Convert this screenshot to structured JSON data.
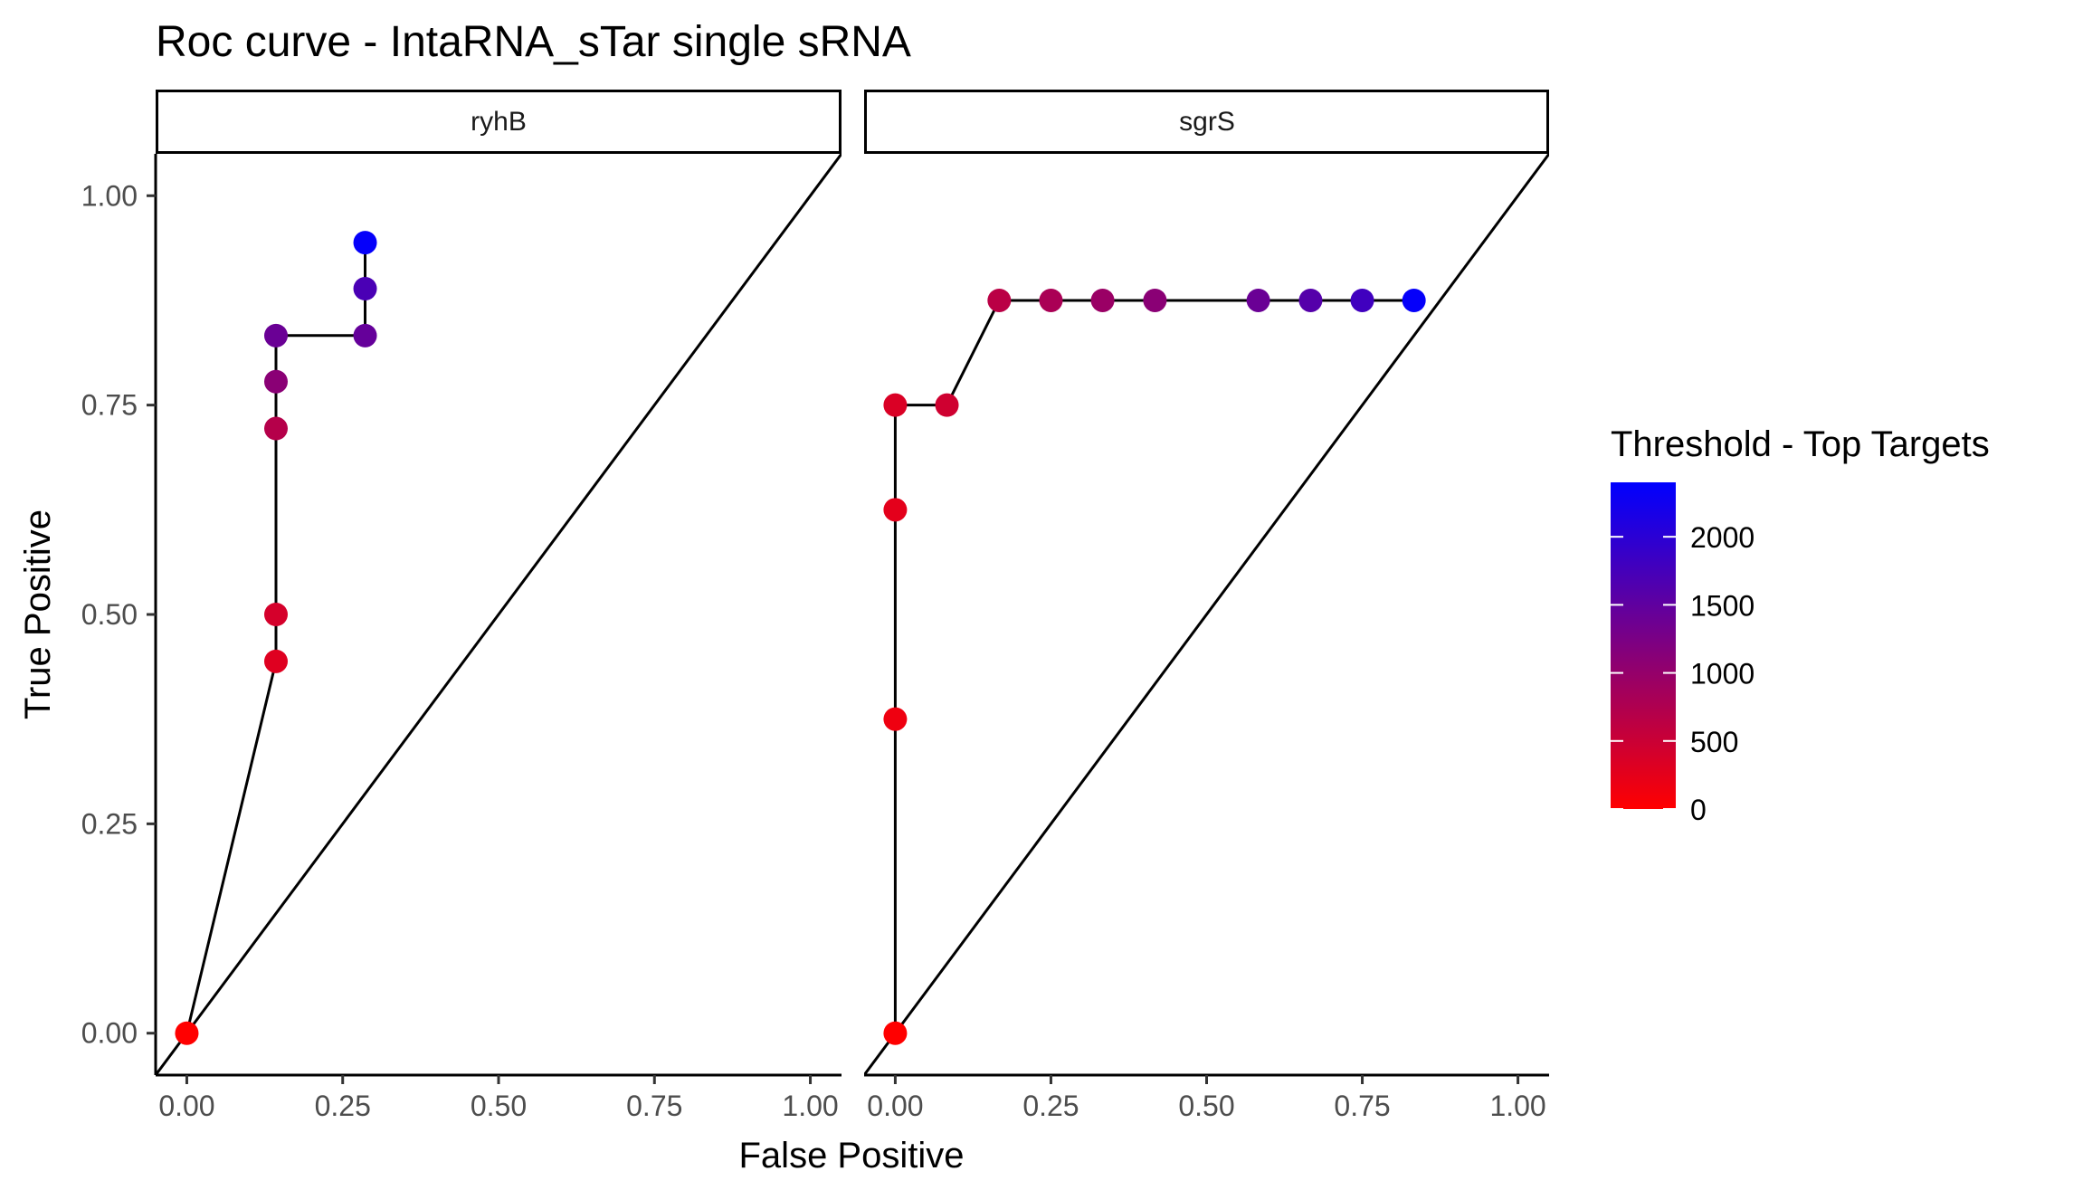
{
  "chart_data": {
    "type": "scatter",
    "title": "Roc curve - IntaRNA_sTar single sRNA",
    "xlabel": "False Positive",
    "ylabel": "True Positive",
    "xlim": [
      -0.05,
      1.05
    ],
    "ylim": [
      -0.05,
      1.05
    ],
    "x_ticks": [
      0,
      0.25,
      0.5,
      0.75,
      1
    ],
    "x_tick_labels": [
      "0.00",
      "0.25",
      "0.50",
      "0.75",
      "1.00"
    ],
    "y_ticks": [
      0,
      0.25,
      0.5,
      0.75,
      1
    ],
    "y_tick_labels": [
      "0.00",
      "0.25",
      "0.50",
      "0.75",
      "1.00"
    ],
    "grid": false,
    "legend": {
      "title": "Threshold - Top Targets",
      "position": "right",
      "low_color": "#FF0000",
      "high_color": "#0000FF",
      "range": [
        0,
        2400
      ],
      "ticks": [
        0,
        500,
        1000,
        1500,
        2000
      ],
      "tick_labels": [
        "0",
        "500",
        "1000",
        "1500",
        "2000"
      ]
    },
    "panels": [
      {
        "label": "ryhB",
        "diagonal": [
          [
            -0.05,
            -0.05
          ],
          [
            1.05,
            1.05
          ]
        ],
        "points": [
          {
            "x": 0.0,
            "y": 0.0,
            "threshold": 0
          },
          {
            "x": 0.143,
            "y": 0.444,
            "threshold": 300
          },
          {
            "x": 0.143,
            "y": 0.5,
            "threshold": 400
          },
          {
            "x": 0.143,
            "y": 0.722,
            "threshold": 700
          },
          {
            "x": 0.143,
            "y": 0.778,
            "threshold": 1100
          },
          {
            "x": 0.143,
            "y": 0.833,
            "threshold": 1400
          },
          {
            "x": 0.286,
            "y": 0.833,
            "threshold": 1450
          },
          {
            "x": 0.286,
            "y": 0.889,
            "threshold": 1700
          },
          {
            "x": 0.286,
            "y": 0.944,
            "threshold": 2350
          }
        ]
      },
      {
        "label": "sgrS",
        "diagonal": [
          [
            -0.05,
            -0.05
          ],
          [
            1.05,
            1.05
          ]
        ],
        "points": [
          {
            "x": 0.0,
            "y": 0.0,
            "threshold": 0
          },
          {
            "x": 0.0,
            "y": 0.375,
            "threshold": 150
          },
          {
            "x": 0.0,
            "y": 0.625,
            "threshold": 250
          },
          {
            "x": 0.0,
            "y": 0.75,
            "threshold": 350
          },
          {
            "x": 0.083,
            "y": 0.75,
            "threshold": 450
          },
          {
            "x": 0.167,
            "y": 0.875,
            "threshold": 650
          },
          {
            "x": 0.25,
            "y": 0.875,
            "threshold": 800
          },
          {
            "x": 0.333,
            "y": 0.875,
            "threshold": 950
          },
          {
            "x": 0.417,
            "y": 0.875,
            "threshold": 1100
          },
          {
            "x": 0.583,
            "y": 0.875,
            "threshold": 1400
          },
          {
            "x": 0.667,
            "y": 0.875,
            "threshold": 1600
          },
          {
            "x": 0.75,
            "y": 0.875,
            "threshold": 1800
          },
          {
            "x": 0.833,
            "y": 0.875,
            "threshold": 2350
          }
        ]
      }
    ]
  }
}
